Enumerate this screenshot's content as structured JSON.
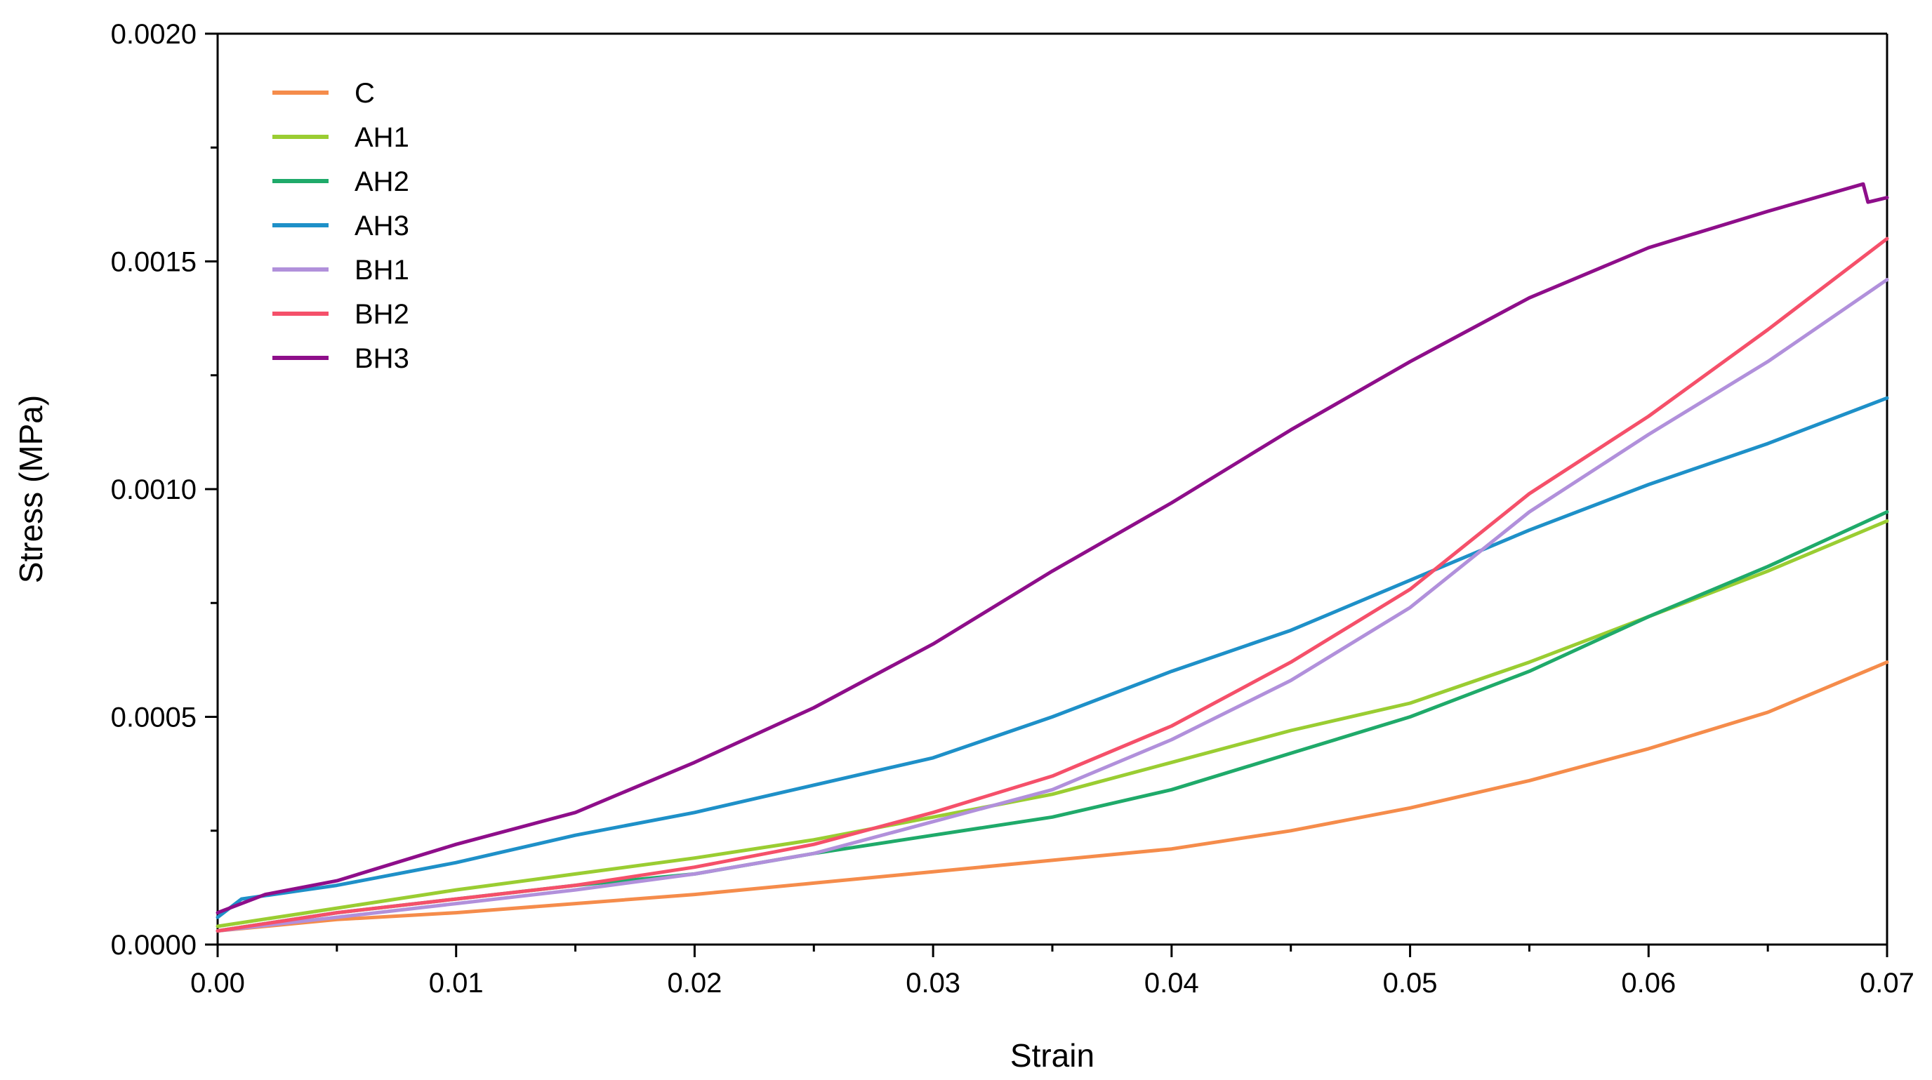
{
  "chart_data": {
    "type": "line",
    "xlabel": "Strain",
    "ylabel": "Stress (MPa)",
    "xlim": [
      0,
      0.07
    ],
    "ylim": [
      0,
      0.002
    ],
    "x_ticks": [
      "0.00",
      "0.01",
      "0.02",
      "0.03",
      "0.04",
      "0.05",
      "0.06",
      "0.07"
    ],
    "y_ticks": [
      "0.0000",
      "0.0005",
      "0.0010",
      "0.0015",
      "0.0020"
    ],
    "grid": false,
    "legend_position": "top-left",
    "series": [
      {
        "name": "C",
        "color": "#F58C4B",
        "points": [
          [
            0.0,
            3e-05
          ],
          [
            0.005,
            5.5e-05
          ],
          [
            0.01,
            7e-05
          ],
          [
            0.015,
            9e-05
          ],
          [
            0.02,
            0.00011
          ],
          [
            0.025,
            0.000135
          ],
          [
            0.03,
            0.00016
          ],
          [
            0.035,
            0.000185
          ],
          [
            0.04,
            0.00021
          ],
          [
            0.045,
            0.00025
          ],
          [
            0.05,
            0.0003
          ],
          [
            0.055,
            0.00036
          ],
          [
            0.06,
            0.00043
          ],
          [
            0.065,
            0.00051
          ],
          [
            0.07,
            0.00062
          ]
        ]
      },
      {
        "name": "AH1",
        "color": "#9ACD32",
        "points": [
          [
            0.0,
            4e-05
          ],
          [
            0.005,
            8e-05
          ],
          [
            0.01,
            0.00012
          ],
          [
            0.015,
            0.000155
          ],
          [
            0.02,
            0.00019
          ],
          [
            0.025,
            0.00023
          ],
          [
            0.03,
            0.00028
          ],
          [
            0.035,
            0.00033
          ],
          [
            0.04,
            0.0004
          ],
          [
            0.045,
            0.00047
          ],
          [
            0.05,
            0.00053
          ],
          [
            0.055,
            0.00062
          ],
          [
            0.06,
            0.00072
          ],
          [
            0.065,
            0.00082
          ],
          [
            0.07,
            0.00093
          ]
        ]
      },
      {
        "name": "AH2",
        "color": "#1FAA6A",
        "points": [
          [
            0.0,
            3e-05
          ],
          [
            0.005,
            7e-05
          ],
          [
            0.01,
            0.0001
          ],
          [
            0.015,
            0.00013
          ],
          [
            0.02,
            0.000155
          ],
          [
            0.025,
            0.0002
          ],
          [
            0.03,
            0.00024
          ],
          [
            0.035,
            0.00028
          ],
          [
            0.04,
            0.00034
          ],
          [
            0.045,
            0.00042
          ],
          [
            0.05,
            0.0005
          ],
          [
            0.055,
            0.0006
          ],
          [
            0.06,
            0.00072
          ],
          [
            0.065,
            0.00083
          ],
          [
            0.07,
            0.00095
          ]
        ]
      },
      {
        "name": "AH3",
        "color": "#1E90C8",
        "points": [
          [
            0.0,
            6e-05
          ],
          [
            0.001,
            0.0001
          ],
          [
            0.005,
            0.00013
          ],
          [
            0.01,
            0.00018
          ],
          [
            0.015,
            0.00024
          ],
          [
            0.02,
            0.00029
          ],
          [
            0.025,
            0.00035
          ],
          [
            0.03,
            0.00041
          ],
          [
            0.035,
            0.0005
          ],
          [
            0.04,
            0.0006
          ],
          [
            0.045,
            0.00069
          ],
          [
            0.05,
            0.0008
          ],
          [
            0.055,
            0.00091
          ],
          [
            0.06,
            0.00101
          ],
          [
            0.065,
            0.0011
          ],
          [
            0.07,
            0.0012
          ]
        ]
      },
      {
        "name": "BH1",
        "color": "#B190DB",
        "points": [
          [
            0.0,
            3e-05
          ],
          [
            0.005,
            6e-05
          ],
          [
            0.01,
            9e-05
          ],
          [
            0.015,
            0.00012
          ],
          [
            0.02,
            0.000155
          ],
          [
            0.025,
            0.0002
          ],
          [
            0.03,
            0.00027
          ],
          [
            0.035,
            0.00034
          ],
          [
            0.04,
            0.00045
          ],
          [
            0.045,
            0.00058
          ],
          [
            0.05,
            0.00074
          ],
          [
            0.055,
            0.00095
          ],
          [
            0.06,
            0.00112
          ],
          [
            0.065,
            0.00128
          ],
          [
            0.07,
            0.00146
          ]
        ]
      },
      {
        "name": "BH2",
        "color": "#F5506A",
        "points": [
          [
            0.0,
            3e-05
          ],
          [
            0.005,
            7e-05
          ],
          [
            0.01,
            0.0001
          ],
          [
            0.015,
            0.00013
          ],
          [
            0.02,
            0.00017
          ],
          [
            0.025,
            0.00022
          ],
          [
            0.03,
            0.00029
          ],
          [
            0.035,
            0.00037
          ],
          [
            0.04,
            0.00048
          ],
          [
            0.045,
            0.00062
          ],
          [
            0.05,
            0.00078
          ],
          [
            0.055,
            0.00099
          ],
          [
            0.06,
            0.00116
          ],
          [
            0.065,
            0.00135
          ],
          [
            0.07,
            0.00155
          ]
        ]
      },
      {
        "name": "BH3",
        "color": "#8E0E8A",
        "points": [
          [
            0.0,
            7e-05
          ],
          [
            0.002,
            0.00011
          ],
          [
            0.005,
            0.00014
          ],
          [
            0.01,
            0.00022
          ],
          [
            0.015,
            0.00029
          ],
          [
            0.02,
            0.0004
          ],
          [
            0.025,
            0.00052
          ],
          [
            0.03,
            0.00066
          ],
          [
            0.035,
            0.00082
          ],
          [
            0.04,
            0.00097
          ],
          [
            0.045,
            0.00113
          ],
          [
            0.05,
            0.00128
          ],
          [
            0.055,
            0.00142
          ],
          [
            0.06,
            0.00153
          ],
          [
            0.065,
            0.00161
          ],
          [
            0.069,
            0.00167
          ],
          [
            0.0692,
            0.00163
          ],
          [
            0.07,
            0.00164
          ]
        ]
      }
    ]
  }
}
